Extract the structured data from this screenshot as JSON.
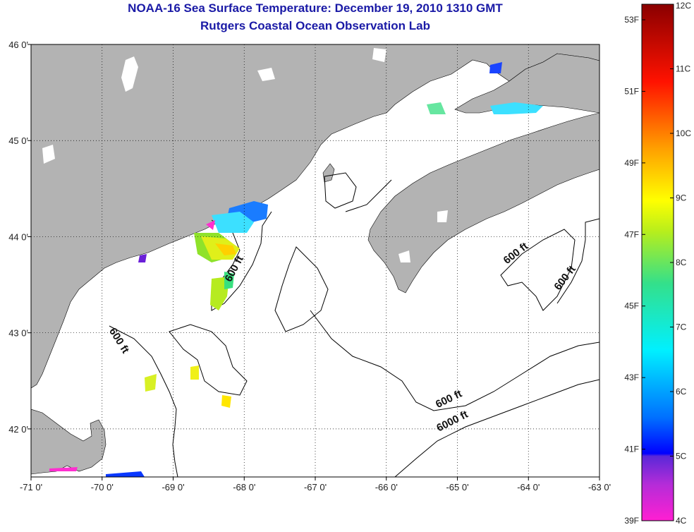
{
  "title": {
    "line1": "NOAA-16 Sea Surface Temperature:  December 19, 2010 1310 GMT",
    "line2": "Rutgers Coastal Ocean Observation Lab"
  },
  "axes": {
    "x_ticks": [
      {
        "value": -71,
        "label": "-71 0'"
      },
      {
        "value": -70,
        "label": "-70 0'"
      },
      {
        "value": -69,
        "label": "-69 0'"
      },
      {
        "value": -68,
        "label": "-68 0'"
      },
      {
        "value": -67,
        "label": "-67 0'"
      },
      {
        "value": -66,
        "label": "-66 0'"
      },
      {
        "value": -65,
        "label": "-65 0'"
      },
      {
        "value": -64,
        "label": "-64 0'"
      },
      {
        "value": -63,
        "label": "-63 0'"
      }
    ],
    "y_ticks": [
      {
        "value": 46,
        "label": "46 0'"
      },
      {
        "value": 45,
        "label": "45 0'"
      },
      {
        "value": 44,
        "label": "44 0'"
      },
      {
        "value": 43,
        "label": "43 0'"
      },
      {
        "value": 42,
        "label": "42 0'"
      }
    ],
    "lon_range": [
      -71,
      -63
    ],
    "lat_range": [
      41.5,
      46
    ]
  },
  "contour_labels": [
    {
      "id": "600-a",
      "text": "600 ft",
      "lon": -68.1,
      "lat": 43.65,
      "rotate": -62
    },
    {
      "id": "600-b",
      "text": "600 ft",
      "lon": -69.8,
      "lat": 42.9,
      "rotate": 58
    },
    {
      "id": "600-c",
      "text": "600 ft",
      "lon": -65.1,
      "lat": 42.28,
      "rotate": -26
    },
    {
      "id": "6000",
      "text": "6000 ft",
      "lon": -65.05,
      "lat": 42.05,
      "rotate": -27
    },
    {
      "id": "600-d",
      "text": "600 ft",
      "lon": -64.15,
      "lat": 43.8,
      "rotate": -38
    },
    {
      "id": "600-e",
      "text": "600 ft",
      "lon": -63.45,
      "lat": 43.55,
      "rotate": -52
    }
  ],
  "colorbar": {
    "celsius": [
      "12C",
      "11C",
      "10C",
      "9C",
      "8C",
      "7C",
      "6C",
      "5C",
      "4C"
    ],
    "fahrenheit": [
      "53F",
      "51F",
      "49F",
      "47F",
      "45F",
      "43F",
      "41F",
      "39F"
    ]
  },
  "colors": {
    "land": "#b3b3b3",
    "water": "#ffffff",
    "title": "#1a1aa6",
    "contour": "#000000"
  }
}
